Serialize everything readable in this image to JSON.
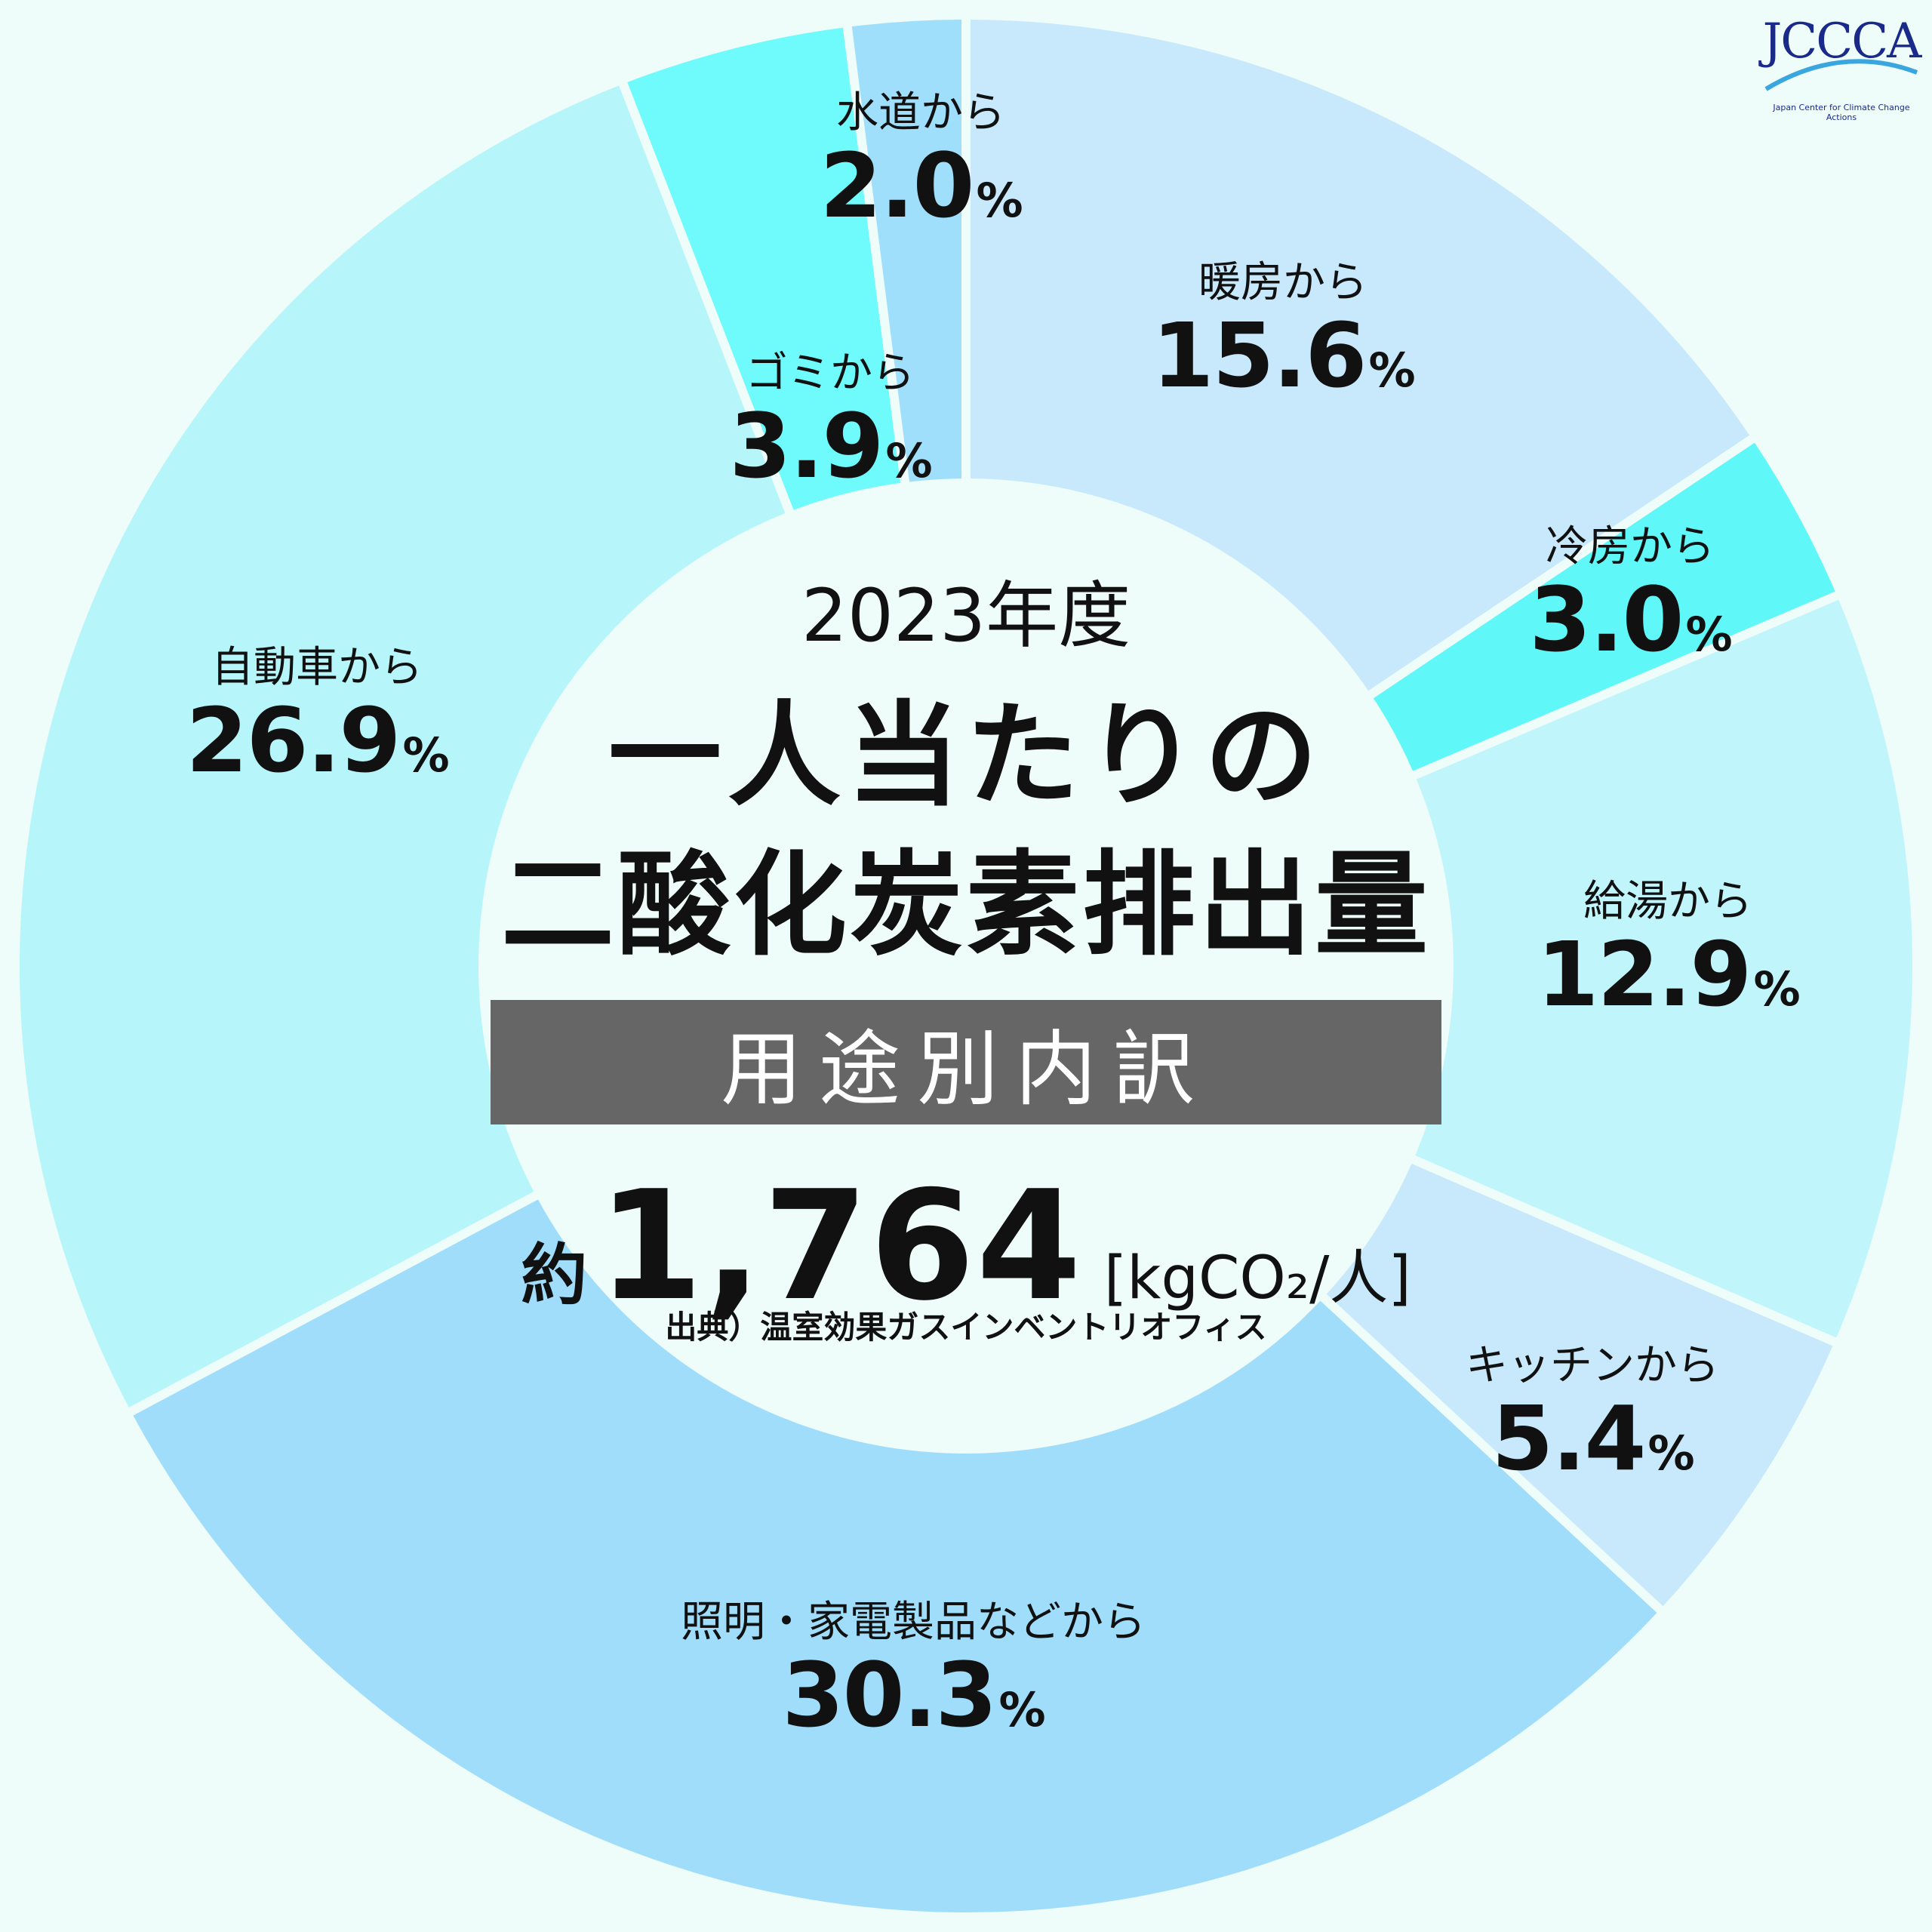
{
  "chart_data": {
    "type": "pie",
    "donut": true,
    "slices": [
      {
        "label": "暖房から",
        "value": 15.6,
        "color": "#c8e9fb"
      },
      {
        "label": "冷房から",
        "value": 3.0,
        "color": "#5ff7f7"
      },
      {
        "label": "給湯から",
        "value": 12.9,
        "color": "#bff5fb"
      },
      {
        "label": "キッチンから",
        "value": 5.4,
        "color": "#c8e9fb"
      },
      {
        "label": "照明・家電製品などから",
        "value": 30.3,
        "color": "#9fddfb"
      },
      {
        "label": "自動車から",
        "value": 26.9,
        "color": "#b6f6fa"
      },
      {
        "label": "ゴミから",
        "value": 3.9,
        "color": "#6ffafc"
      },
      {
        "label": "水道から",
        "value": 2.0,
        "color": "#9fdffb"
      }
    ],
    "unit_symbol": "%"
  },
  "center": {
    "year": "2023年度",
    "title_line1": "一人当たりの",
    "title_line2": "二酸化炭素排出量",
    "breakdown": "用途別内訳",
    "approx": "約",
    "total": "1,764",
    "unit": "[kgCO₂/人]",
    "source": "出典）温室効果ガスインベントリオフィス"
  },
  "logo": {
    "name": "JCCCA",
    "subtitle": "Japan Center for Climate Change Actions"
  }
}
